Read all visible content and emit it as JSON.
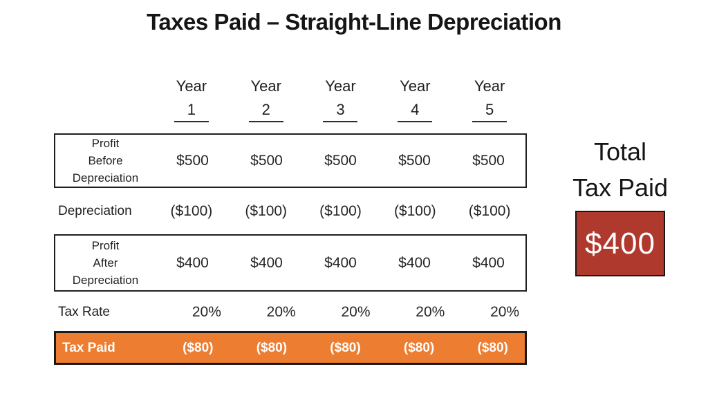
{
  "chart_data": {
    "type": "table",
    "title": "Taxes Paid – Straight-Line Depreciation",
    "column_header_word": "Year",
    "columns": [
      "1",
      "2",
      "3",
      "4",
      "5"
    ],
    "rows": [
      {
        "label": "Profit\nBefore\nDepreciation",
        "values": [
          "$500",
          "$500",
          "$500",
          "$500",
          "$500"
        ],
        "emphasis": "outlined-box"
      },
      {
        "label": "Depreciation",
        "values": [
          "($100)",
          "($100)",
          "($100)",
          "($100)",
          "($100)"
        ],
        "emphasis": "none"
      },
      {
        "label": "Profit\nAfter\nDepreciation",
        "values": [
          "$400",
          "$400",
          "$400",
          "$400",
          "$400"
        ],
        "emphasis": "outlined-box"
      },
      {
        "label": "Tax Rate",
        "values": [
          "20%",
          "20%",
          "20%",
          "20%",
          "20%"
        ],
        "emphasis": "none"
      },
      {
        "label": "Tax Paid",
        "values": [
          "($80)",
          "($80)",
          "($80)",
          "($80)",
          "($80)"
        ],
        "emphasis": "orange-highlight"
      }
    ],
    "summary": {
      "label": "Total\nTax Paid",
      "value": "$400"
    }
  },
  "colors": {
    "highlight-orange": "#ED7D31",
    "summary-red": "#B0392E",
    "text-dark": "#1F1F1F",
    "value-text-white": "#FFFFFF"
  }
}
